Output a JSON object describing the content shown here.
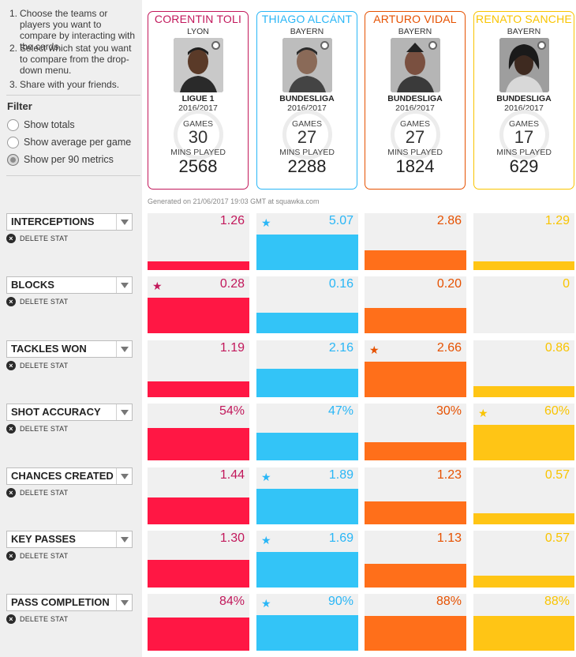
{
  "instructions": [
    {
      "num": "1.",
      "text": "Choose the teams or players you want to compare by interacting with the cards."
    },
    {
      "num": "2.",
      "text": "Select which stat you want to compare from the drop-down menu."
    },
    {
      "num": "3.",
      "text": "Share with your friends."
    }
  ],
  "filter": {
    "title": "Filter",
    "options": [
      {
        "label": "Show totals",
        "selected": false
      },
      {
        "label": "Show average per game",
        "selected": false
      },
      {
        "label": "Show per 90 metrics",
        "selected": true
      }
    ]
  },
  "players": [
    {
      "name": "CORENTIN TOLI",
      "club": "LYON",
      "league": "LIGUE 1",
      "season": "2016/2017",
      "games_label": "GAMES",
      "games": "30",
      "mins_label": "MINS PLAYED",
      "mins": "2568",
      "color": "#c2185b",
      "bar_color": "#ff1744"
    },
    {
      "name": "THIAGO ALCÁNT",
      "club": "BAYERN",
      "league": "BUNDESLIGA",
      "season": "2016/2017",
      "games_label": "GAMES",
      "games": "27",
      "mins_label": "MINS PLAYED",
      "mins": "2288",
      "color": "#29b6f6",
      "bar_color": "#33c4f7"
    },
    {
      "name": "ARTURO VIDAL",
      "club": "BAYERN",
      "league": "BUNDESLIGA",
      "season": "2016/2017",
      "games_label": "GAMES",
      "games": "27",
      "mins_label": "MINS PLAYED",
      "mins": "1824",
      "color": "#e65100",
      "bar_color": "#ff6f1a"
    },
    {
      "name": "RENATO SANCHE",
      "club": "BAYERN",
      "league": "BUNDESLIGA",
      "season": "2016/2017",
      "games_label": "GAMES",
      "games": "17",
      "mins_label": "MINS PLAYED",
      "mins": "629",
      "color": "#f9c400",
      "bar_color": "#ffc515"
    }
  ],
  "generated": "Generated on 21/06/2017 19:03 GMT at squawka.com",
  "delete_label": "DELETE STAT",
  "stats": [
    {
      "name": "INTERCEPTIONS",
      "values": [
        "1.26",
        "5.07",
        "2.86",
        "1.29"
      ],
      "fractions": [
        0.25,
        1.0,
        0.56,
        0.25
      ],
      "star": 1
    },
    {
      "name": "BLOCKS",
      "values": [
        "0.28",
        "0.16",
        "0.20",
        "0"
      ],
      "fractions": [
        1.0,
        0.57,
        0.71,
        0.0
      ],
      "star": 0
    },
    {
      "name": "TACKLES WON",
      "values": [
        "1.19",
        "2.16",
        "2.66",
        "0.86"
      ],
      "fractions": [
        0.45,
        0.81,
        1.0,
        0.32
      ],
      "star": 2
    },
    {
      "name": "SHOT ACCURACY",
      "values": [
        "54%",
        "47%",
        "30%",
        "60%"
      ],
      "fractions": [
        0.9,
        0.78,
        0.5,
        1.0
      ],
      "star": 3
    },
    {
      "name": "CHANCES CREATED",
      "values": [
        "1.44",
        "1.89",
        "1.23",
        "0.57"
      ],
      "fractions": [
        0.76,
        1.0,
        0.65,
        0.3
      ],
      "star": 1
    },
    {
      "name": "KEY PASSES",
      "values": [
        "1.30",
        "1.69",
        "1.13",
        "0.57"
      ],
      "fractions": [
        0.77,
        1.0,
        0.67,
        0.34
      ],
      "star": 1
    },
    {
      "name": "PASS COMPLETION",
      "values": [
        "84%",
        "90%",
        "88%",
        "88%"
      ],
      "fractions": [
        0.93,
        1.0,
        0.98,
        0.98
      ],
      "star": 1
    }
  ]
}
